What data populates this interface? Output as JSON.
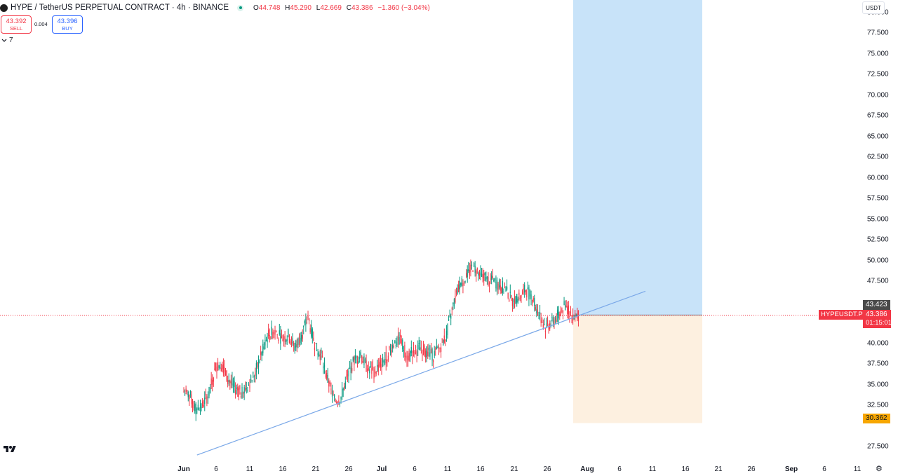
{
  "header": {
    "symbol_title": "HYPE / TetherUS PERPETUAL CONTRACT · 4h · BINANCE",
    "ohlc": {
      "o_label": "O",
      "o": "44.748",
      "h_label": "H",
      "h": "45.290",
      "l_label": "L",
      "l": "42.669",
      "c_label": "C",
      "c": "43.386",
      "change": "−1.360 (−3.04%)"
    }
  },
  "trade": {
    "sell_price": "43.392",
    "sell_label": "SELL",
    "spread": "0.004",
    "buy_price": "43.396",
    "buy_label": "BUY",
    "collapse_count": "7"
  },
  "price_axis": {
    "currency": "USDT",
    "ticks": [
      "80.000",
      "77.500",
      "75.000",
      "72.500",
      "70.000",
      "67.500",
      "65.000",
      "62.500",
      "60.000",
      "57.500",
      "55.000",
      "52.500",
      "50.000",
      "47.500",
      "40.000",
      "37.500",
      "35.000",
      "32.500",
      "27.500"
    ],
    "entry_label": "43.423",
    "last_price": "43.386",
    "countdown": "01:15:01",
    "stop_label": "30.362",
    "symbol_tag": "HYPEUSDT.P"
  },
  "time_axis": {
    "labels": [
      "Jun",
      "6",
      "11",
      "16",
      "21",
      "26",
      "Jul",
      "6",
      "11",
      "16",
      "21",
      "26",
      "Aug",
      "6",
      "11",
      "16",
      "21",
      "26",
      "Sep",
      "6",
      "11"
    ],
    "bold": [
      "Jun",
      "Jul",
      "Aug",
      "Sep"
    ]
  },
  "colors": {
    "up": "#089981",
    "down": "#f23645",
    "trendline": "#7aa8e8",
    "target_zone": "#c8e3f9",
    "stop_zone": "#fdf0e0"
  },
  "chart_data": {
    "type": "candlestick",
    "timeframe": "4h",
    "y_range": [
      26.0,
      81.5
    ],
    "last_price": 43.386,
    "position": {
      "entry": 43.423,
      "target": 81.5,
      "stop": 30.362
    },
    "trendline": {
      "from": {
        "date": "2025-06-03",
        "price": 26.5
      },
      "to": {
        "date": "2025-08-10",
        "price": 46.3
      }
    },
    "daily_closes": [
      {
        "d": "2025-06-01",
        "c": 33.8
      },
      {
        "d": "2025-06-02",
        "c": 32.0
      },
      {
        "d": "2025-06-03",
        "c": 32.5
      },
      {
        "d": "2025-06-04",
        "c": 34.0
      },
      {
        "d": "2025-06-05",
        "c": 37.2
      },
      {
        "d": "2025-06-06",
        "c": 37.5
      },
      {
        "d": "2025-06-07",
        "c": 35.5
      },
      {
        "d": "2025-06-08",
        "c": 34.5
      },
      {
        "d": "2025-06-09",
        "c": 34.0
      },
      {
        "d": "2025-06-10",
        "c": 35.0
      },
      {
        "d": "2025-06-11",
        "c": 36.5
      },
      {
        "d": "2025-06-12",
        "c": 38.8
      },
      {
        "d": "2025-06-13",
        "c": 41.0
      },
      {
        "d": "2025-06-14",
        "c": 41.5
      },
      {
        "d": "2025-06-15",
        "c": 40.5
      },
      {
        "d": "2025-06-16",
        "c": 41.0
      },
      {
        "d": "2025-06-17",
        "c": 39.5
      },
      {
        "d": "2025-06-18",
        "c": 41.0
      },
      {
        "d": "2025-06-19",
        "c": 43.0
      },
      {
        "d": "2025-06-20",
        "c": 40.0
      },
      {
        "d": "2025-06-21",
        "c": 38.5
      },
      {
        "d": "2025-06-22",
        "c": 35.5
      },
      {
        "d": "2025-06-23",
        "c": 33.0
      },
      {
        "d": "2025-06-24",
        "c": 33.5
      },
      {
        "d": "2025-06-25",
        "c": 36.0
      },
      {
        "d": "2025-06-26",
        "c": 38.0
      },
      {
        "d": "2025-06-27",
        "c": 38.5
      },
      {
        "d": "2025-06-28",
        "c": 37.0
      },
      {
        "d": "2025-06-29",
        "c": 36.5
      },
      {
        "d": "2025-06-30",
        "c": 37.5
      },
      {
        "d": "2025-07-01",
        "c": 38.5
      },
      {
        "d": "2025-07-02",
        "c": 40.0
      },
      {
        "d": "2025-07-03",
        "c": 40.5
      },
      {
        "d": "2025-07-04",
        "c": 38.5
      },
      {
        "d": "2025-07-05",
        "c": 39.0
      },
      {
        "d": "2025-07-06",
        "c": 39.5
      },
      {
        "d": "2025-07-07",
        "c": 39.0
      },
      {
        "d": "2025-07-08",
        "c": 38.5
      },
      {
        "d": "2025-07-09",
        "c": 39.5
      },
      {
        "d": "2025-07-10",
        "c": 41.0
      },
      {
        "d": "2025-07-11",
        "c": 44.5
      },
      {
        "d": "2025-07-12",
        "c": 47.0
      },
      {
        "d": "2025-07-13",
        "c": 48.0
      },
      {
        "d": "2025-07-14",
        "c": 49.3
      },
      {
        "d": "2025-07-15",
        "c": 48.2
      },
      {
        "d": "2025-07-16",
        "c": 47.8
      },
      {
        "d": "2025-07-17",
        "c": 47.5
      },
      {
        "d": "2025-07-18",
        "c": 47.0
      },
      {
        "d": "2025-07-19",
        "c": 46.5
      },
      {
        "d": "2025-07-20",
        "c": 45.0
      },
      {
        "d": "2025-07-21",
        "c": 45.5
      },
      {
        "d": "2025-07-22",
        "c": 46.5
      },
      {
        "d": "2025-07-23",
        "c": 45.5
      },
      {
        "d": "2025-07-24",
        "c": 43.5
      },
      {
        "d": "2025-07-25",
        "c": 42.0
      },
      {
        "d": "2025-07-26",
        "c": 42.5
      },
      {
        "d": "2025-07-27",
        "c": 43.5
      },
      {
        "d": "2025-07-28",
        "c": 44.5
      },
      {
        "d": "2025-07-29",
        "c": 43.5
      },
      {
        "d": "2025-07-30",
        "c": 43.4
      }
    ]
  }
}
